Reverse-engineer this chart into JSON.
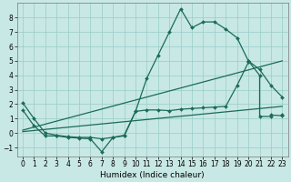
{
  "bg_color": "#c8e8e5",
  "grid_color": "#98ccc8",
  "line_color": "#1a6b5a",
  "xlabel": "Humidex (Indice chaleur)",
  "xlim": [
    -0.5,
    23.5
  ],
  "ylim": [
    -1.6,
    9.0
  ],
  "xticks": [
    0,
    1,
    2,
    3,
    4,
    5,
    6,
    7,
    8,
    9,
    10,
    11,
    12,
    13,
    14,
    15,
    16,
    17,
    18,
    19,
    20,
    21,
    22,
    23
  ],
  "yticks": [
    -1,
    0,
    1,
    2,
    3,
    4,
    5,
    6,
    7,
    8
  ],
  "figsize": [
    3.2,
    2.0
  ],
  "dpi": 100,
  "curve1_x": [
    0,
    1,
    2,
    3,
    4,
    5,
    6,
    7,
    8,
    9,
    10,
    11,
    12,
    13,
    14,
    15,
    16,
    17,
    18,
    19,
    20,
    21,
    22,
    23
  ],
  "curve1_y": [
    1.6,
    0.5,
    -0.2,
    -0.2,
    -0.3,
    -0.35,
    -0.4,
    -1.3,
    -0.3,
    -0.2,
    1.5,
    3.8,
    5.4,
    7.0,
    8.6,
    7.3,
    7.7,
    7.7,
    7.2,
    6.6,
    5.0,
    4.4,
    3.3,
    2.5
  ],
  "curve2_x": [
    0,
    23
  ],
  "curve2_y": [
    0.2,
    5.0
  ],
  "curve3_x": [
    0,
    23
  ],
  "curve3_y": [
    0.1,
    1.85
  ],
  "curve4_x": [
    0,
    1,
    2,
    3,
    4,
    5,
    6,
    7,
    8,
    9,
    10,
    11,
    12,
    13,
    14,
    15,
    16,
    17,
    18,
    19,
    20,
    20,
    21,
    21,
    22,
    22,
    23,
    23
  ],
  "curve4_y": [
    2.1,
    1.0,
    0.0,
    -0.15,
    -0.25,
    -0.3,
    -0.3,
    -0.4,
    -0.3,
    -0.15,
    1.5,
    1.6,
    1.6,
    1.55,
    1.65,
    1.7,
    1.75,
    1.8,
    1.85,
    3.3,
    4.9,
    5.0,
    4.0,
    1.15,
    1.15,
    1.25,
    1.2,
    1.3
  ]
}
